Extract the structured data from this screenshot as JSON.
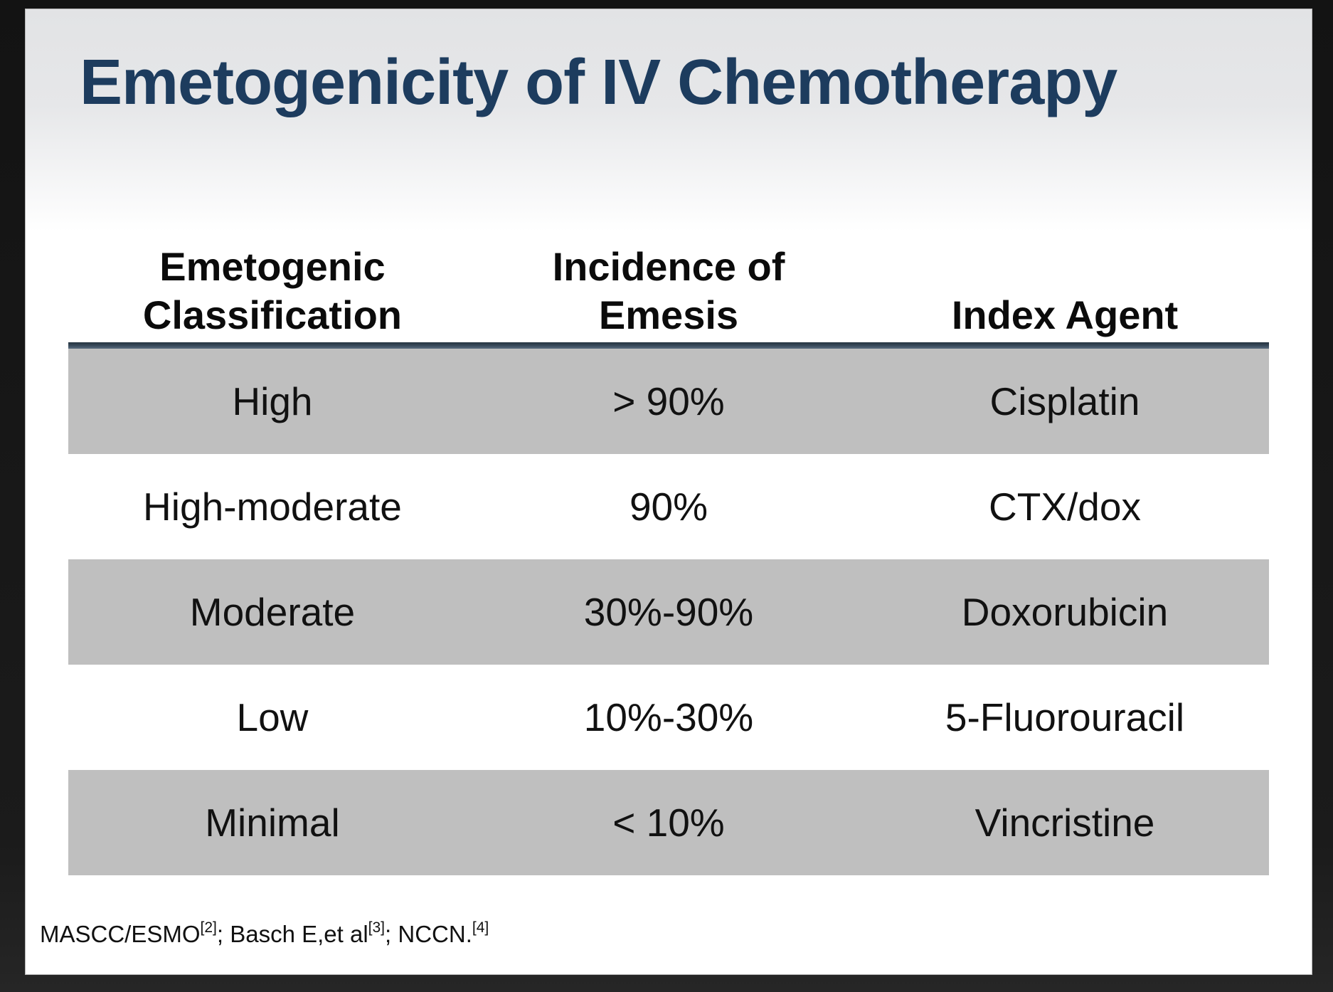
{
  "slide": {
    "title": "Emetogenicity of IV Chemotherapy"
  },
  "table": {
    "columns": [
      {
        "line1": "Emetogenic",
        "line2": "Classification"
      },
      {
        "line1": "Incidence of",
        "line2": "Emesis"
      },
      {
        "line1": "",
        "line2": "Index Agent"
      }
    ],
    "rows": [
      {
        "classification": "High",
        "incidence": "> 90%",
        "agent": "Cisplatin",
        "shaded": true
      },
      {
        "classification": "High-moderate",
        "incidence": "90%",
        "agent": "CTX/dox",
        "shaded": false
      },
      {
        "classification": "Moderate",
        "incidence": "30%-90%",
        "agent": "Doxorubicin",
        "shaded": true
      },
      {
        "classification": "Low",
        "incidence": "10%-30%",
        "agent": "5-Fluorouracil",
        "shaded": false
      },
      {
        "classification": "Minimal",
        "incidence": "< 10%",
        "agent": "Vincristine",
        "shaded": true
      }
    ]
  },
  "footnote": {
    "segments": [
      {
        "text": "MASCC/ESMO",
        "sup": false
      },
      {
        "text": "[2]",
        "sup": true
      },
      {
        "text": "; Basch E,et al",
        "sup": false
      },
      {
        "text": "[3]",
        "sup": true
      },
      {
        "text": "; NCCN.",
        "sup": false
      },
      {
        "text": "[4]",
        "sup": true
      }
    ]
  },
  "colors": {
    "title_navy": "#1d3c5e",
    "row_shade_gray": "#bfbfbf",
    "divider_navy": "#3a4b5c",
    "frame_black": "#1a1a1a",
    "slide_top_gray": "#e2e3e5"
  }
}
